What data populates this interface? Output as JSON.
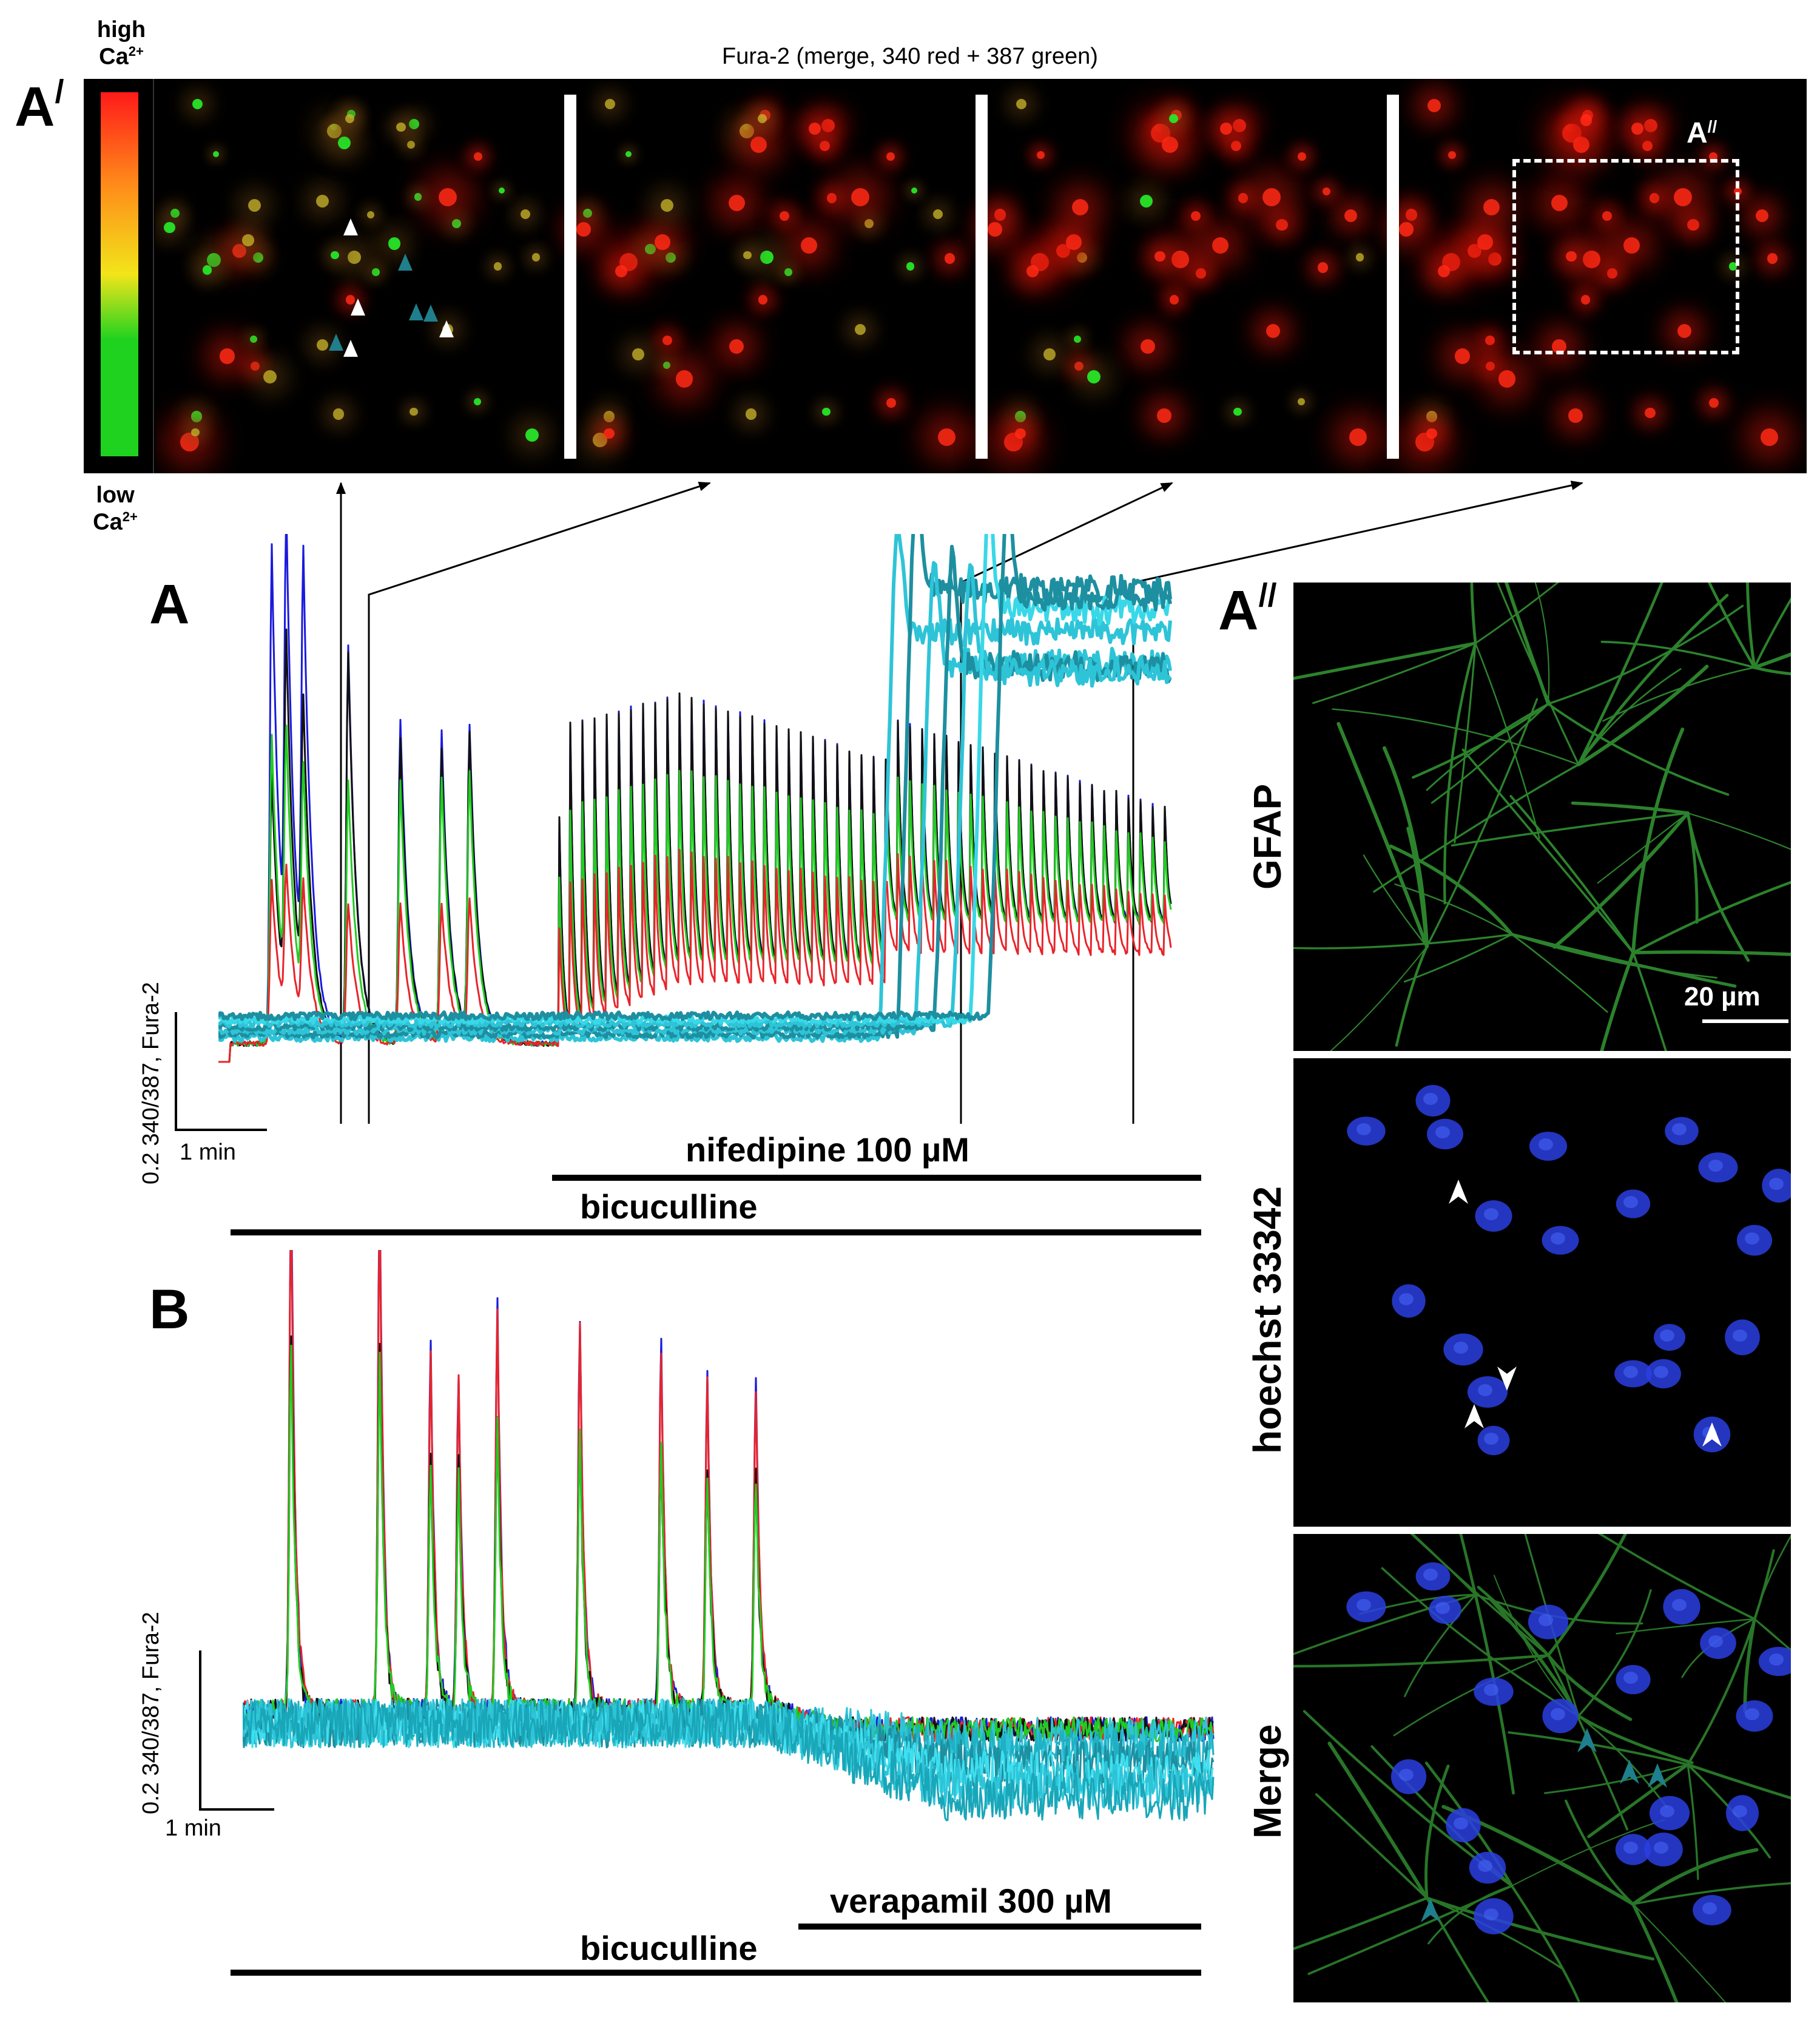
{
  "figure": {
    "top_panel": {
      "letter": "A",
      "prime": "/",
      "title": "Fura-2 (merge, 340 red + 387 green)",
      "colorbar_high": "high",
      "colorbar_high_ion": "Ca",
      "colorbar_high_sup": "2+",
      "colorbar_low": "low",
      "colorbar_low_ion": "Ca",
      "colorbar_low_sup": "2+",
      "inset_label": "A",
      "inset_prime": "//"
    },
    "panel_a": {
      "letter": "A",
      "drug1": "nifedipine 100 µM",
      "drug2": "bicuculline",
      "scale_y": "0.2 340/387, Fura-2",
      "scale_x": "1 min"
    },
    "panel_b": {
      "letter": "B",
      "drug1": "verapamil 300 µM",
      "drug2": "bicuculline",
      "scale_y": "0.2 340/387, Fura-2",
      "scale_x": "1 min"
    },
    "panel_a2": {
      "letter": "A",
      "prime": "//",
      "label_gfap": "GFAP",
      "label_hoechst": "hoechst 33342",
      "label_merge": "Merge",
      "scale_bar": "20 µm"
    },
    "colors": {
      "trace_blue": "#1a1adc",
      "trace_red": "#e8242a",
      "trace_green": "#22cc22",
      "trace_black": "#111111",
      "trace_cyan": "#2ec4d8",
      "trace_teal": "#1d8fa0",
      "gfap": "#2f8a2f",
      "nuclei": "#2a3ee0",
      "arrow_white": "#ffffff",
      "arrow_teal": "#1f7f8c"
    }
  }
}
